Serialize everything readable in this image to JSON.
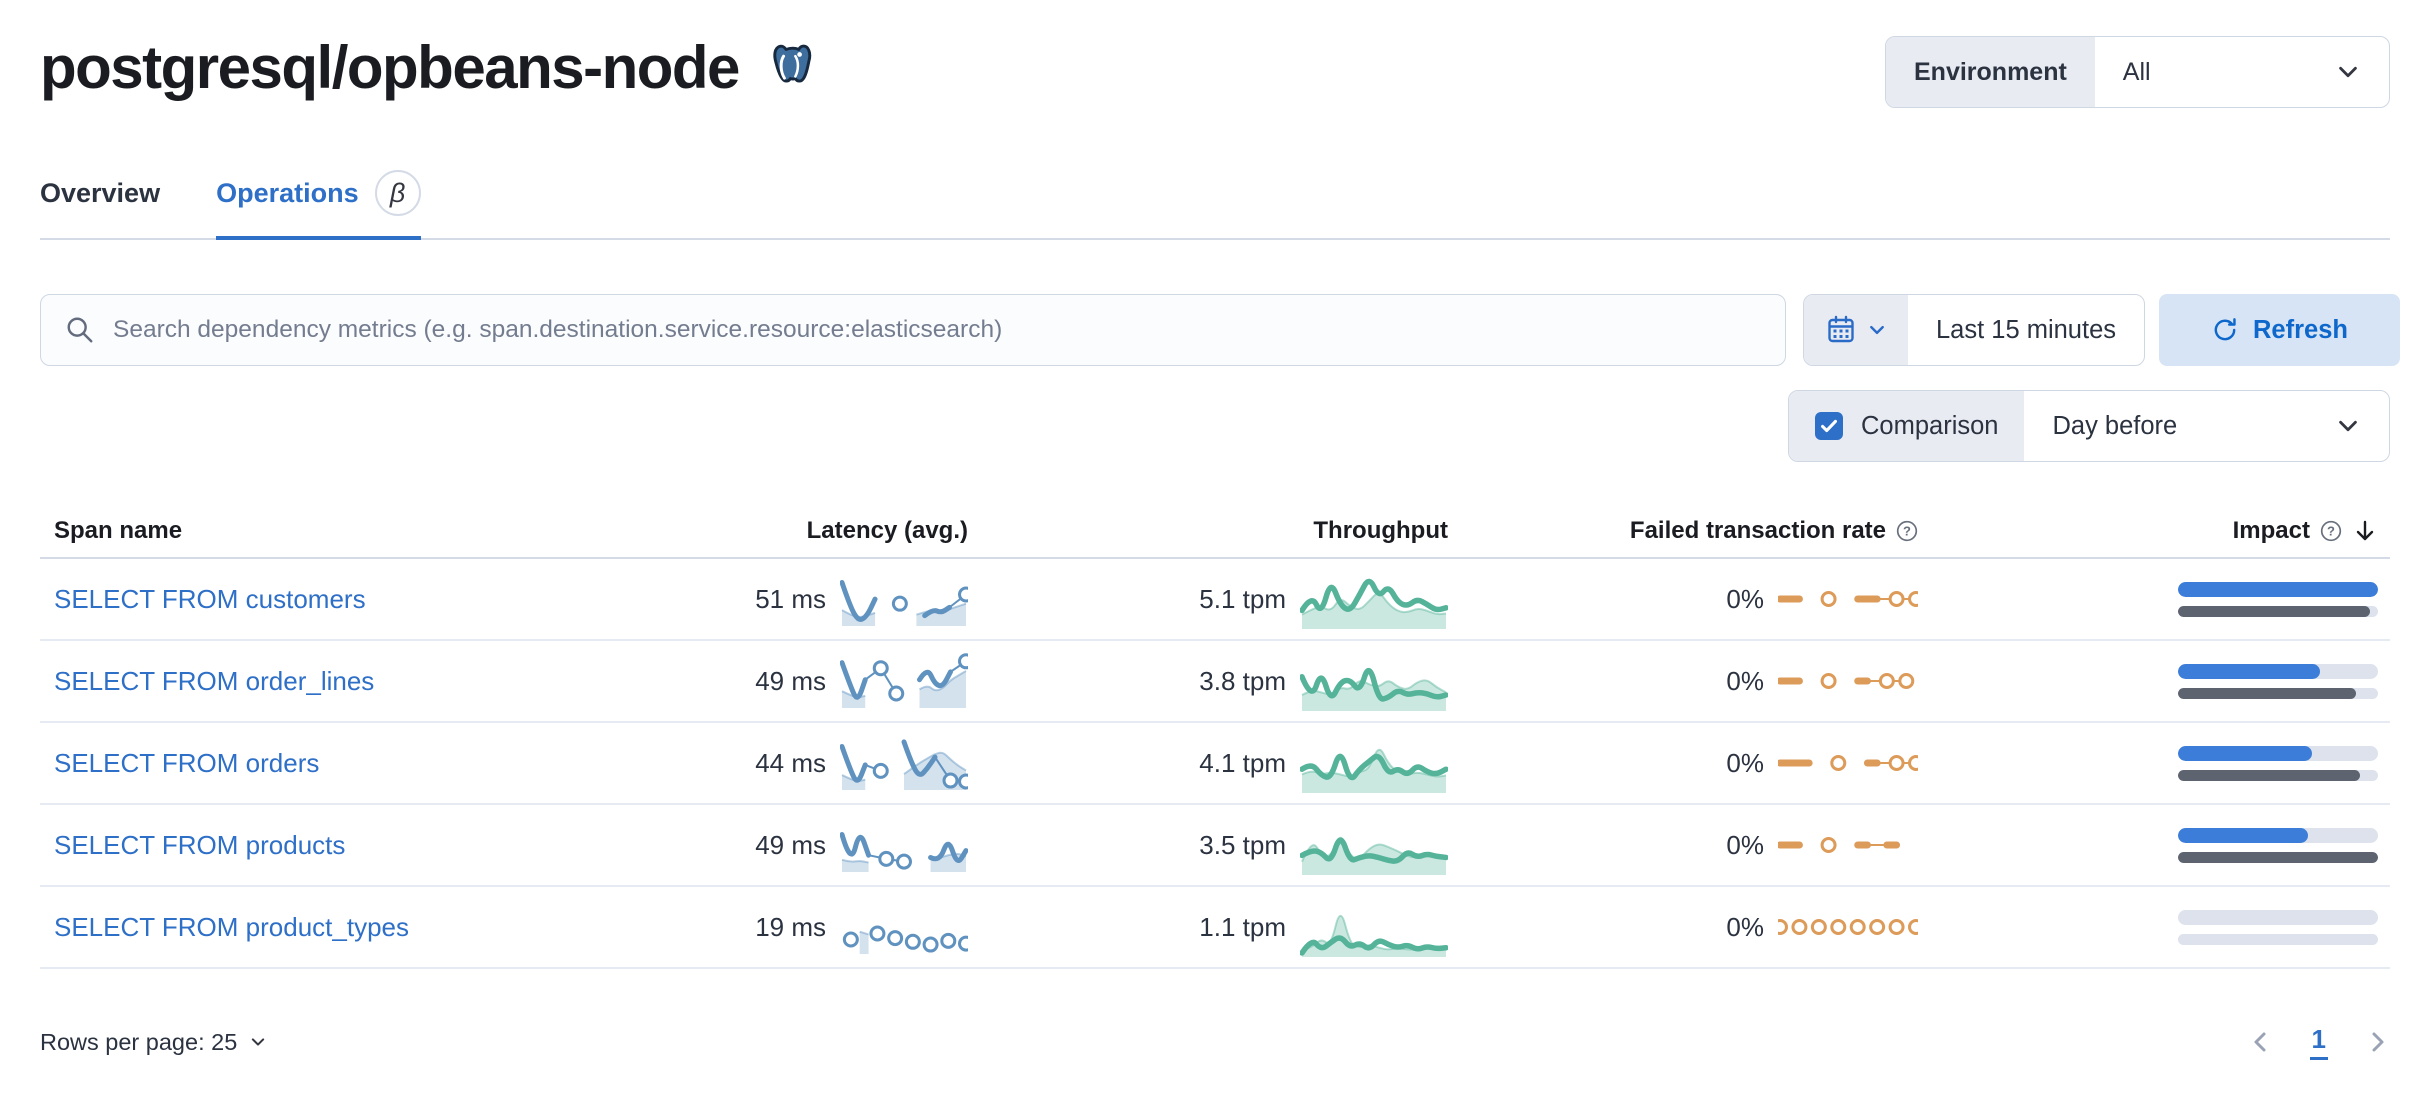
{
  "page": {
    "title": "postgresql/opbeans-node"
  },
  "environment": {
    "label": "Environment",
    "value": "All"
  },
  "tabs": [
    {
      "label": "Overview",
      "active": false
    },
    {
      "label": "Operations",
      "active": true,
      "beta": "β"
    }
  ],
  "search": {
    "placeholder": "Search dependency metrics (e.g. span.destination.service.resource:elasticsearch)"
  },
  "time_picker": {
    "value": "Last 15 minutes",
    "refresh_label": "Refresh"
  },
  "comparison": {
    "label": "Comparison",
    "checked": true,
    "value": "Day before"
  },
  "table": {
    "columns": [
      "Span name",
      "Latency (avg.)",
      "Throughput",
      "Failed transaction rate",
      "Impact"
    ],
    "rows": [
      {
        "span_name": "SELECT FROM customers",
        "latency": "51 ms",
        "throughput": "5.1 tpm",
        "failed_rate": "0%",
        "impact": {
          "current": 100,
          "previous": 96
        },
        "sparklines": {
          "latency": {
            "current": [
              88,
              35,
              4,
              14,
              52,
              null,
              null,
              42,
              null,
              null,
              16,
              30,
              22,
              34,
              null,
              62
            ],
            "previous": [
              28,
              18,
              12,
              16,
              22,
              null,
              null,
              null,
              null,
              18,
              24,
              28,
              22,
              30,
              36,
              42
            ]
          },
          "throughput": {
            "current": [
              30,
              60,
              22,
              88,
              40,
              28,
              60,
              95,
              55,
              78,
              45,
              38,
              52,
              42,
              30,
              35
            ],
            "previous": [
              22,
              32,
              38,
              28,
              55,
              38,
              30,
              48,
              68,
              42,
              28,
              26,
              34,
              30,
              22,
              24
            ]
          },
          "failed": {
            "current": [
              0,
              0,
              0,
              null,
              null,
              0,
              null,
              null,
              0,
              0,
              0,
              null,
              0,
              null,
              0
            ]
          }
        }
      },
      {
        "span_name": "SELECT FROM order_lines",
        "latency": "49 ms",
        "throughput": "3.8 tpm",
        "failed_rate": "0%",
        "impact": {
          "current": 71,
          "previous": 89
        },
        "sparklines": {
          "latency": {
            "current": [
              92,
              45,
              6,
              55,
              null,
              80,
              null,
              25,
              null,
              null,
              55,
              82,
              45,
              40,
              72,
              null,
              95
            ],
            "previous": [
              30,
              22,
              16,
              20,
              null,
              null,
              null,
              null,
              null,
              null,
              34,
              44,
              30,
              36,
              54,
              64,
              74
            ]
          },
          "throughput": {
            "current": [
              60,
              15,
              72,
              12,
              50,
              55,
              30,
              88,
              15,
              20,
              35,
              25,
              30,
              28,
              20,
              25
            ],
            "previous": [
              25,
              35,
              30,
              25,
              40,
              35,
              55,
              45,
              40,
              55,
              40,
              35,
              50,
              55,
              40,
              30
            ]
          },
          "failed": {
            "current": [
              0,
              0,
              0,
              null,
              null,
              0,
              null,
              null,
              0,
              0,
              null,
              0,
              null,
              0,
              null
            ]
          }
        }
      },
      {
        "span_name": "SELECT FROM orders",
        "latency": "44 ms",
        "throughput": "4.1 tpm",
        "failed_rate": "0%",
        "impact": {
          "current": 67,
          "previous": 91
        },
        "sparklines": {
          "latency": {
            "current": [
              88,
              40,
              5,
              48,
              null,
              35,
              null,
              null,
              98,
              50,
              22,
              40,
              65,
              null,
              14,
              null,
              12
            ],
            "previous": [
              26,
              18,
              12,
              16,
              null,
              null,
              null,
              null,
              28,
              40,
              52,
              62,
              72,
              76,
              60,
              46,
              36
            ]
          },
          "throughput": {
            "current": [
              40,
              52,
              28,
              22,
              80,
              15,
              40,
              55,
              70,
              30,
              42,
              28,
              48,
              35,
              30,
              40
            ],
            "previous": [
              30,
              38,
              30,
              34,
              30,
              25,
              35,
              40,
              88,
              50,
              34,
              30,
              34,
              30,
              25,
              28
            ]
          },
          "failed": {
            "current": [
              0,
              0,
              0,
              0,
              null,
              null,
              0,
              null,
              null,
              0,
              0,
              null,
              0,
              null,
              0
            ]
          }
        }
      },
      {
        "span_name": "SELECT FROM products",
        "latency": "49 ms",
        "throughput": "3.5 tpm",
        "failed_rate": "0%",
        "impact": {
          "current": 65,
          "previous": 100
        },
        "sparklines": {
          "latency": {
            "current": [
              75,
              8,
              85,
              30,
              null,
              22,
              null,
              16,
              null,
              null,
              25,
              15,
              68,
              8,
              40
            ],
            "previous": [
              20,
              15,
              18,
              14,
              null,
              null,
              null,
              null,
              null,
              null,
              20,
              24,
              30,
              34,
              28
            ]
          },
          "throughput": {
            "current": [
              32,
              42,
              38,
              18,
              75,
              20,
              28,
              32,
              28,
              22,
              20,
              40,
              28,
              35,
              30,
              28
            ],
            "previous": [
              20,
              62,
              35,
              28,
              78,
              30,
              25,
              45,
              55,
              48,
              40,
              30,
              28,
              34,
              30,
              25
            ]
          },
          "failed": {
            "current": [
              0,
              0,
              0,
              null,
              null,
              0,
              null,
              null,
              0,
              0,
              null,
              0,
              0,
              null,
              null
            ]
          }
        }
      },
      {
        "span_name": "SELECT FROM product_types",
        "latency": "19 ms",
        "throughput": "1.1 tpm",
        "failed_rate": "0%",
        "impact": {
          "current": 0,
          "previous": 0
        },
        "sparklines": {
          "latency": {
            "current": [
              null,
              25,
              null,
              null,
              38,
              null,
              28,
              null,
              20,
              null,
              14,
              null,
              22,
              null,
              16
            ],
            "previous": [
              null,
              null,
              42,
              36,
              null,
              null,
              null,
              null,
              null,
              null,
              null,
              null,
              null,
              null,
              null
            ],
            "connect": false
          },
          "throughput": {
            "current": [
              2,
              30,
              8,
              22,
              35,
              12,
              22,
              8,
              28,
              18,
              12,
              18,
              8,
              15,
              10,
              12
            ],
            "previous": [
              8,
              12,
              30,
              15,
              92,
              20,
              12,
              18,
              12,
              8,
              12,
              8,
              10,
              12,
              8,
              10
            ]
          },
          "failed": {
            "current": [
              0,
              null,
              0,
              null,
              0,
              null,
              0,
              null,
              0,
              null,
              0,
              null,
              0,
              null,
              0
            ],
            "connect": false
          }
        }
      }
    ]
  },
  "footer": {
    "rows_per_page": "Rows per page: 25",
    "page": "1"
  },
  "colors": {
    "link": "#2E6FC7",
    "latency": "#6092C0",
    "latencyFill": "rgba(96,146,192,0.27)",
    "throughput": "#54B399",
    "throughputFill": "rgba(84,179,153,0.30)",
    "failed": "#DD9B5A",
    "impactBlue": "#3B7DD8",
    "impactGrey": "#5D6470",
    "track": "#DDE2EC",
    "border": "#CFD7E3",
    "headerBorder": "#D4DBE6",
    "rowBorder": "#E6EAF2",
    "prepend": "#E9EBF3",
    "refreshBg": "#D6E4F6",
    "refreshText": "#0E67CB",
    "iconGrey": "#69707D"
  }
}
